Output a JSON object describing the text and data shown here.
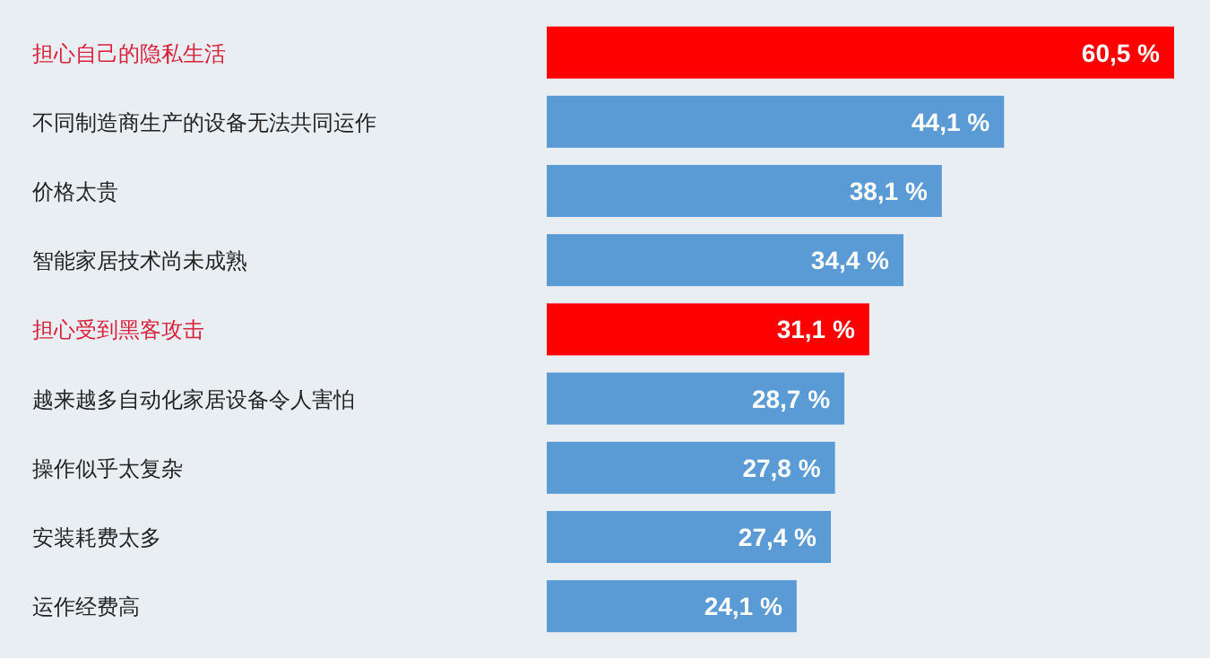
{
  "chart_data": {
    "type": "bar",
    "orientation": "horizontal",
    "categories": [
      "担心自己的隐私生活",
      "不同制造商生产的设备无法共同运作",
      "价格太贵",
      "智能家居技术尚未成熟",
      "担心受到黑客攻击",
      "越来越多自动化家居设备令人害怕",
      "操作似乎太复杂",
      "安装耗费太多",
      "运作经费高"
    ],
    "values": [
      60.5,
      44.1,
      38.1,
      34.4,
      31.1,
      28.7,
      27.8,
      27.4,
      24.1
    ],
    "value_labels": [
      "60,5 %",
      "44,1 %",
      "38,1 %",
      "34,4 %",
      "31,1 %",
      "28,7 %",
      "27,8 %",
      "27,4 %",
      "24,1 %"
    ],
    "colors": [
      "#ff0000",
      "#5b9bd5",
      "#5b9bd5",
      "#5b9bd5",
      "#ff0000",
      "#5b9bd5",
      "#5b9bd5",
      "#5b9bd5",
      "#5b9bd5"
    ]
  }
}
